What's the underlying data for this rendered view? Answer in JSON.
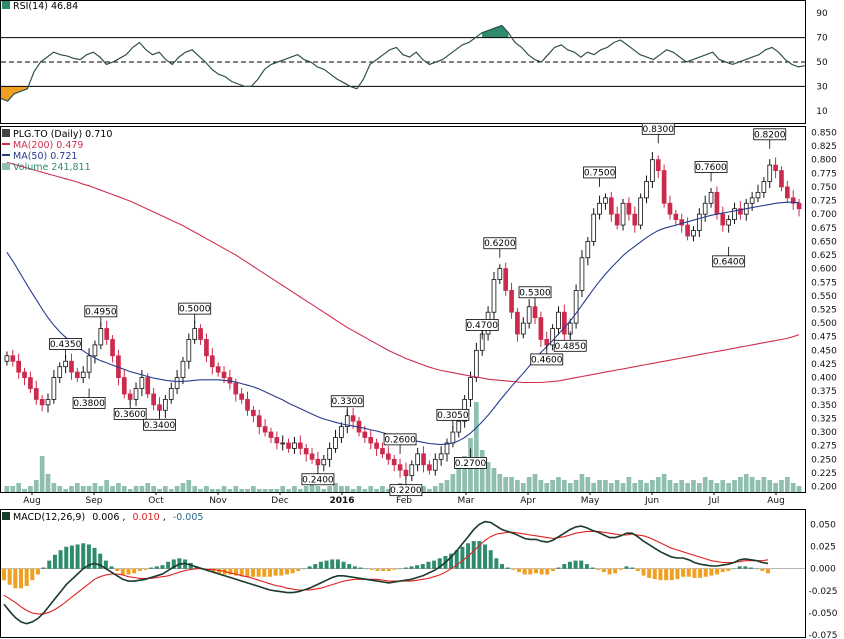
{
  "chart_data": [
    {
      "type": "line",
      "panel": "rsi",
      "legend": "RSI(14) 46.84",
      "ylim": [
        0,
        100
      ],
      "yticks": [
        10,
        30,
        50,
        70,
        90
      ],
      "levels": [
        30,
        50,
        70
      ],
      "colors": {
        "line": "#2f4f4f",
        "overbought": "#2e8b6e",
        "oversold": "#f0a020"
      },
      "series": [
        {
          "values": [
            20,
            18,
            24,
            26,
            28,
            42,
            50,
            54,
            58,
            56,
            55,
            53,
            52,
            56,
            58,
            54,
            48,
            50,
            53,
            56,
            62,
            66,
            60,
            56,
            58,
            52,
            48,
            54,
            58,
            60,
            55,
            50,
            44,
            40,
            38,
            34,
            32,
            30,
            30,
            36,
            44,
            48,
            50,
            52,
            54,
            56,
            52,
            50,
            46,
            44,
            40,
            36,
            33,
            30,
            28,
            36,
            48,
            52,
            56,
            60,
            62,
            56,
            54,
            58,
            52,
            48,
            50,
            52,
            56,
            60,
            64,
            66,
            70,
            74,
            76,
            78,
            80,
            74,
            66,
            62,
            56,
            52,
            50,
            56,
            62,
            64,
            60,
            58,
            54,
            58,
            56,
            60,
            62,
            66,
            68,
            64,
            60,
            56,
            54,
            52,
            56,
            60,
            58,
            54,
            50,
            52,
            54,
            56,
            58,
            52,
            50,
            48,
            50,
            52,
            54,
            56,
            60,
            62,
            58,
            52,
            48,
            46,
            47
          ]
        }
      ]
    },
    {
      "type": "candlestick",
      "panel": "price",
      "legend": {
        "ticker": "PLG.TO (Daily) 0.710",
        "ma200": "MA(200) 0.479",
        "ma50": "MA(50) 0.721",
        "volume": "Volume 241,811"
      },
      "ylim": [
        0.19,
        0.86
      ],
      "yticks": [
        "0.850",
        "0.825",
        "0.800",
        "0.775",
        "0.750",
        "0.725",
        "0.700",
        "0.675",
        "0.650",
        "0.625",
        "0.600",
        "0.575",
        "0.550",
        "0.525",
        "0.500",
        "0.475",
        "0.450",
        "0.425",
        "0.400",
        "0.375",
        "0.350",
        "0.325",
        "0.300",
        "0.275",
        "0.250",
        "0.225",
        "0.200"
      ],
      "xticks": [
        "Aug",
        "Sep",
        "Oct",
        "Nov",
        "Dec",
        "2016",
        "Feb",
        "Mar",
        "Apr",
        "May",
        "Jun",
        "Jul",
        "Aug"
      ],
      "colors": {
        "up": "#111111",
        "down": "#cc2a4c",
        "ma200": "#d03050",
        "ma50": "#283c8c",
        "volume": "#8fbfb0"
      },
      "close": [
        0.44,
        0.43,
        0.41,
        0.4,
        0.38,
        0.36,
        0.35,
        0.36,
        0.4,
        0.42,
        0.43,
        0.41,
        0.4,
        0.41,
        0.44,
        0.46,
        0.49,
        0.47,
        0.44,
        0.4,
        0.37,
        0.36,
        0.38,
        0.4,
        0.37,
        0.35,
        0.34,
        0.36,
        0.38,
        0.4,
        0.43,
        0.47,
        0.49,
        0.47,
        0.44,
        0.42,
        0.41,
        0.4,
        0.39,
        0.37,
        0.36,
        0.34,
        0.33,
        0.31,
        0.3,
        0.29,
        0.28,
        0.28,
        0.27,
        0.28,
        0.27,
        0.26,
        0.25,
        0.24,
        0.25,
        0.27,
        0.29,
        0.31,
        0.33,
        0.32,
        0.3,
        0.29,
        0.28,
        0.27,
        0.26,
        0.25,
        0.24,
        0.23,
        0.22,
        0.24,
        0.26,
        0.24,
        0.23,
        0.25,
        0.26,
        0.28,
        0.3,
        0.32,
        0.36,
        0.4,
        0.45,
        0.48,
        0.52,
        0.58,
        0.6,
        0.56,
        0.52,
        0.48,
        0.5,
        0.53,
        0.51,
        0.47,
        0.46,
        0.49,
        0.52,
        0.48,
        0.5,
        0.56,
        0.62,
        0.65,
        0.7,
        0.72,
        0.73,
        0.7,
        0.68,
        0.72,
        0.7,
        0.68,
        0.73,
        0.76,
        0.8,
        0.78,
        0.72,
        0.7,
        0.69,
        0.68,
        0.66,
        0.67,
        0.7,
        0.72,
        0.74,
        0.7,
        0.68,
        0.69,
        0.71,
        0.7,
        0.72,
        0.73,
        0.74,
        0.76,
        0.79,
        0.78,
        0.75,
        0.73,
        0.72,
        0.71
      ],
      "ma50": [
        0.63,
        0.614,
        0.596,
        0.578,
        0.56,
        0.543,
        0.526,
        0.51,
        0.496,
        0.484,
        0.474,
        0.465,
        0.457,
        0.449,
        0.442,
        0.436,
        0.431,
        0.427,
        0.423,
        0.419,
        0.415,
        0.411,
        0.408,
        0.405,
        0.402,
        0.399,
        0.397,
        0.395,
        0.394,
        0.393,
        0.393,
        0.394,
        0.395,
        0.396,
        0.396,
        0.396,
        0.396,
        0.395,
        0.394,
        0.392,
        0.389,
        0.386,
        0.383,
        0.379,
        0.374,
        0.369,
        0.364,
        0.359,
        0.353,
        0.348,
        0.343,
        0.338,
        0.333,
        0.328,
        0.324,
        0.321,
        0.318,
        0.315,
        0.313,
        0.311,
        0.309,
        0.307,
        0.304,
        0.302,
        0.299,
        0.296,
        0.293,
        0.29,
        0.287,
        0.285,
        0.283,
        0.281,
        0.279,
        0.278,
        0.277,
        0.278,
        0.28,
        0.284,
        0.29,
        0.298,
        0.308,
        0.319,
        0.331,
        0.344,
        0.358,
        0.371,
        0.384,
        0.396,
        0.408,
        0.421,
        0.434,
        0.446,
        0.457,
        0.468,
        0.48,
        0.492,
        0.504,
        0.518,
        0.533,
        0.548,
        0.563,
        0.577,
        0.59,
        0.602,
        0.613,
        0.624,
        0.633,
        0.641,
        0.649,
        0.657,
        0.664,
        0.67,
        0.674,
        0.677,
        0.68,
        0.683,
        0.686,
        0.689,
        0.692,
        0.695,
        0.698,
        0.7,
        0.702,
        0.704,
        0.706,
        0.708,
        0.71,
        0.712,
        0.714,
        0.716,
        0.718,
        0.72,
        0.721,
        0.722,
        0.722,
        0.721
      ],
      "ma200": [
        0.795,
        0.792,
        0.789,
        0.786,
        0.783,
        0.78,
        0.777,
        0.774,
        0.771,
        0.768,
        0.765,
        0.762,
        0.759,
        0.755,
        0.752,
        0.748,
        0.744,
        0.74,
        0.736,
        0.732,
        0.728,
        0.724,
        0.719,
        0.714,
        0.709,
        0.704,
        0.699,
        0.694,
        0.689,
        0.684,
        0.679,
        0.673,
        0.667,
        0.661,
        0.655,
        0.649,
        0.643,
        0.637,
        0.631,
        0.625,
        0.618,
        0.611,
        0.604,
        0.597,
        0.59,
        0.583,
        0.576,
        0.569,
        0.562,
        0.555,
        0.548,
        0.541,
        0.534,
        0.527,
        0.52,
        0.513,
        0.506,
        0.499,
        0.492,
        0.486,
        0.48,
        0.474,
        0.468,
        0.462,
        0.456,
        0.45,
        0.445,
        0.44,
        0.435,
        0.431,
        0.427,
        0.423,
        0.419,
        0.416,
        0.413,
        0.411,
        0.409,
        0.407,
        0.405,
        0.403,
        0.401,
        0.399,
        0.397,
        0.396,
        0.395,
        0.394,
        0.393,
        0.392,
        0.391,
        0.391,
        0.391,
        0.391,
        0.392,
        0.393,
        0.394,
        0.396,
        0.398,
        0.4,
        0.402,
        0.404,
        0.406,
        0.408,
        0.41,
        0.412,
        0.414,
        0.416,
        0.418,
        0.42,
        0.422,
        0.424,
        0.426,
        0.428,
        0.43,
        0.432,
        0.434,
        0.436,
        0.438,
        0.44,
        0.442,
        0.444,
        0.446,
        0.448,
        0.45,
        0.452,
        0.454,
        0.456,
        0.458,
        0.46,
        0.462,
        0.464,
        0.466,
        0.468,
        0.47,
        0.472,
        0.475,
        0.479
      ],
      "volume": [
        2,
        2,
        3,
        1,
        2,
        4,
        12,
        6,
        3,
        2,
        1,
        2,
        3,
        2,
        2,
        3,
        2,
        4,
        2,
        3,
        2,
        1,
        2,
        2,
        3,
        2,
        1,
        2,
        1,
        2,
        3,
        4,
        2,
        1,
        2,
        1,
        1,
        2,
        1,
        2,
        1,
        1,
        2,
        1,
        1,
        1,
        1,
        2,
        1,
        2,
        1,
        2,
        4,
        2,
        1,
        2,
        3,
        2,
        2,
        1,
        2,
        1,
        2,
        1,
        2,
        1,
        2,
        3,
        1,
        2,
        1,
        2,
        1,
        2,
        3,
        4,
        6,
        8,
        12,
        18,
        30,
        14,
        10,
        8,
        6,
        5,
        5,
        4,
        3,
        5,
        6,
        4,
        3,
        4,
        5,
        4,
        3,
        4,
        6,
        5,
        3,
        4,
        4,
        3,
        4,
        3,
        5,
        3,
        4,
        3,
        4,
        5,
        6,
        4,
        3,
        4,
        3,
        4,
        3,
        5,
        4,
        3,
        4,
        3,
        4,
        5,
        6,
        5,
        4,
        5,
        4,
        3,
        4,
        5,
        3,
        2
      ],
      "volume_max": 30,
      "annotations": [
        {
          "label": "0.4350",
          "i": 10,
          "value": 0.435,
          "pos": "above"
        },
        {
          "label": "0.4950",
          "i": 16,
          "value": 0.495,
          "pos": "above"
        },
        {
          "label": "0.3800",
          "i": 14,
          "value": 0.38,
          "pos": "below"
        },
        {
          "label": "0.3600",
          "i": 21,
          "value": 0.36,
          "pos": "below"
        },
        {
          "label": "0.3400",
          "i": 26,
          "value": 0.34,
          "pos": "below"
        },
        {
          "label": "0.5000",
          "i": 32,
          "value": 0.5,
          "pos": "above"
        },
        {
          "label": "0.3300",
          "i": 58,
          "value": 0.33,
          "pos": "above"
        },
        {
          "label": "0.2400",
          "i": 53,
          "value": 0.24,
          "pos": "below"
        },
        {
          "label": "0.2600",
          "i": 67,
          "value": 0.26,
          "pos": "above"
        },
        {
          "label": "0.2200",
          "i": 68,
          "value": 0.22,
          "pos": "below"
        },
        {
          "label": "0.3050",
          "i": 76,
          "value": 0.305,
          "pos": "above"
        },
        {
          "label": "0.2700",
          "i": 79,
          "value": 0.27,
          "pos": "below"
        },
        {
          "label": "0.4700",
          "i": 81,
          "value": 0.47,
          "pos": "above"
        },
        {
          "label": "0.6200",
          "i": 84,
          "value": 0.62,
          "pos": "above"
        },
        {
          "label": "0.5300",
          "i": 90,
          "value": 0.53,
          "pos": "above"
        },
        {
          "label": "0.4600",
          "i": 92,
          "value": 0.46,
          "pos": "below"
        },
        {
          "label": "0.4850",
          "i": 96,
          "value": 0.485,
          "pos": "below"
        },
        {
          "label": "0.7500",
          "i": 101,
          "value": 0.75,
          "pos": "above"
        },
        {
          "label": "0.8300",
          "i": 111,
          "value": 0.83,
          "pos": "above"
        },
        {
          "label": "0.7600",
          "i": 120,
          "value": 0.76,
          "pos": "above"
        },
        {
          "label": "0.6400",
          "i": 123,
          "value": 0.64,
          "pos": "below"
        },
        {
          "label": "0.8200",
          "i": 130,
          "value": 0.82,
          "pos": "above"
        }
      ]
    },
    {
      "type": "line",
      "panel": "macd",
      "legend": {
        "title": "MACD(12,26,9)",
        "macd": "0.006",
        "signal": "0.010",
        "hist": "-0.005"
      },
      "ylim": [
        -0.077,
        0.065
      ],
      "yticks": [
        "0.050",
        "0.025",
        "0.000",
        "-0.025",
        "-0.050",
        "-0.075"
      ],
      "colors": {
        "macd": "#1a3a2a",
        "signal": "#e02020",
        "hist_pos": "#2e8b6e",
        "hist_neg": "#f0a020"
      },
      "series": [
        {
          "name": "MACD",
          "values": [
            -0.04,
            -0.048,
            -0.055,
            -0.06,
            -0.062,
            -0.06,
            -0.056,
            -0.05,
            -0.042,
            -0.034,
            -0.026,
            -0.018,
            -0.012,
            -0.006,
            0.0,
            0.004,
            0.006,
            0.004,
            0.0,
            -0.004,
            -0.008,
            -0.012,
            -0.014,
            -0.014,
            -0.013,
            -0.012,
            -0.01,
            -0.008,
            -0.006,
            -0.002,
            0.002,
            0.005,
            0.006,
            0.004,
            0.002,
            0.0,
            -0.002,
            -0.004,
            -0.006,
            -0.008,
            -0.01,
            -0.012,
            -0.014,
            -0.016,
            -0.018,
            -0.02,
            -0.022,
            -0.024,
            -0.025,
            -0.026,
            -0.027,
            -0.027,
            -0.026,
            -0.024,
            -0.022,
            -0.019,
            -0.016,
            -0.013,
            -0.01,
            -0.008,
            -0.008,
            -0.009,
            -0.01,
            -0.011,
            -0.012,
            -0.013,
            -0.014,
            -0.015,
            -0.016,
            -0.015,
            -0.014,
            -0.013,
            -0.012,
            -0.01,
            -0.008,
            -0.005,
            -0.002,
            0.002,
            0.007,
            0.013,
            0.02,
            0.028,
            0.036,
            0.044,
            0.05,
            0.053,
            0.052,
            0.048,
            0.044,
            0.042,
            0.04,
            0.037,
            0.034,
            0.033,
            0.033,
            0.031,
            0.03,
            0.032,
            0.036,
            0.04,
            0.044,
            0.047,
            0.048,
            0.046,
            0.043,
            0.041,
            0.038,
            0.035,
            0.035,
            0.037,
            0.04,
            0.04,
            0.036,
            0.031,
            0.027,
            0.023,
            0.019,
            0.016,
            0.013,
            0.012,
            0.012,
            0.01,
            0.007,
            0.005,
            0.004,
            0.003,
            0.003,
            0.004,
            0.005,
            0.007,
            0.01,
            0.011,
            0.01,
            0.009,
            0.007,
            0.006
          ]
        },
        {
          "name": "Signal",
          "values": [
            -0.03,
            -0.034,
            -0.038,
            -0.043,
            -0.047,
            -0.05,
            -0.051,
            -0.051,
            -0.049,
            -0.046,
            -0.042,
            -0.037,
            -0.032,
            -0.027,
            -0.022,
            -0.017,
            -0.012,
            -0.009,
            -0.007,
            -0.006,
            -0.006,
            -0.007,
            -0.009,
            -0.01,
            -0.011,
            -0.011,
            -0.011,
            -0.01,
            -0.009,
            -0.008,
            -0.006,
            -0.004,
            -0.002,
            -0.001,
            0.0,
            0.0,
            -0.001,
            -0.001,
            -0.002,
            -0.003,
            -0.005,
            -0.006,
            -0.008,
            -0.009,
            -0.011,
            -0.013,
            -0.015,
            -0.017,
            -0.019,
            -0.02,
            -0.022,
            -0.023,
            -0.024,
            -0.024,
            -0.024,
            -0.023,
            -0.022,
            -0.02,
            -0.018,
            -0.016,
            -0.014,
            -0.013,
            -0.012,
            -0.012,
            -0.012,
            -0.012,
            -0.012,
            -0.013,
            -0.014,
            -0.014,
            -0.014,
            -0.014,
            -0.014,
            -0.013,
            -0.012,
            -0.011,
            -0.009,
            -0.007,
            -0.004,
            0.0,
            0.004,
            0.009,
            0.014,
            0.02,
            0.026,
            0.032,
            0.036,
            0.039,
            0.04,
            0.041,
            0.041,
            0.04,
            0.039,
            0.038,
            0.037,
            0.036,
            0.035,
            0.034,
            0.035,
            0.036,
            0.038,
            0.04,
            0.041,
            0.042,
            0.042,
            0.042,
            0.041,
            0.04,
            0.039,
            0.038,
            0.038,
            0.039,
            0.038,
            0.037,
            0.035,
            0.032,
            0.029,
            0.026,
            0.023,
            0.021,
            0.019,
            0.017,
            0.015,
            0.013,
            0.011,
            0.009,
            0.008,
            0.007,
            0.007,
            0.007,
            0.008,
            0.009,
            0.009,
            0.009,
            0.009,
            0.01
          ]
        }
      ]
    }
  ]
}
